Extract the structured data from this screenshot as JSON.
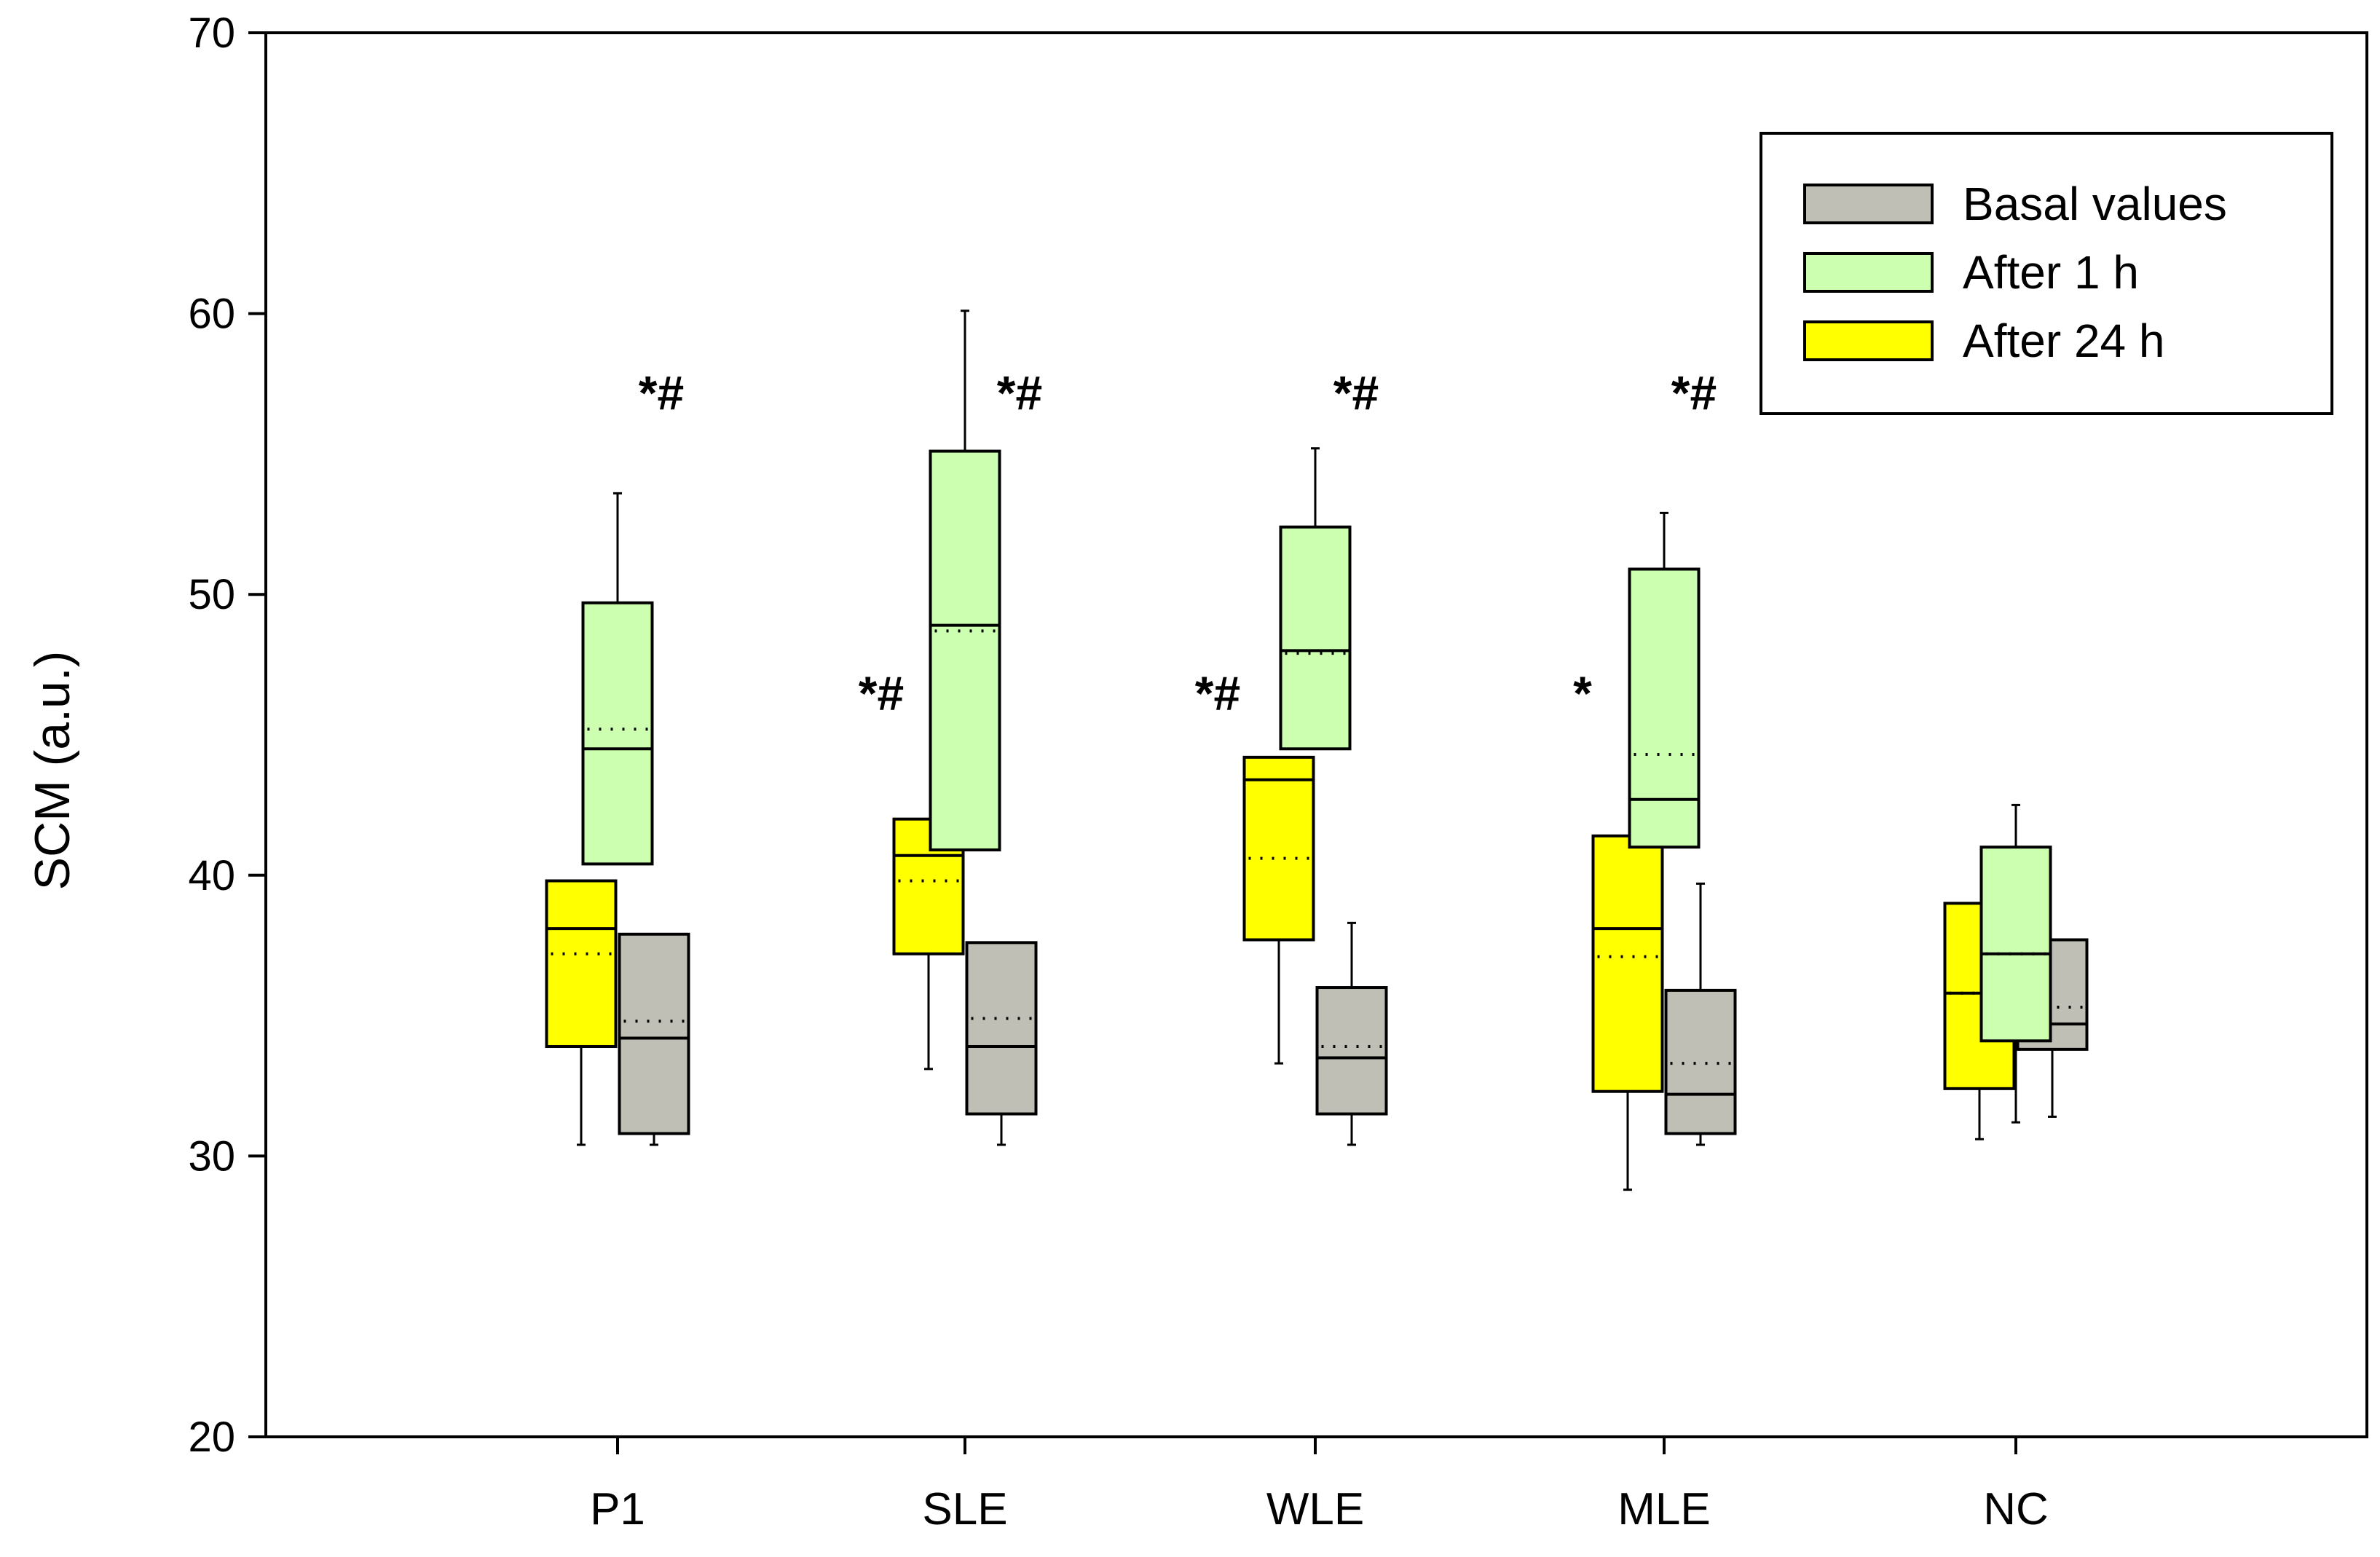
{
  "chart_data": {
    "type": "box",
    "ylabel": "SCM (a.u.)",
    "ylim": [
      20,
      70
    ],
    "yticks": [
      20,
      30,
      40,
      50,
      60,
      70
    ],
    "categories": [
      "P1",
      "SLE",
      "WLE",
      "MLE",
      "NC"
    ],
    "legend_position": "top-right",
    "series": [
      {
        "name": "Basal values",
        "color": "#c0bfb5",
        "boxes": [
          {
            "min": 30.4,
            "q1": 30.8,
            "median": 34.2,
            "mean": 34.8,
            "q3": 37.9,
            "max": 37.9
          },
          {
            "min": 30.4,
            "q1": 31.5,
            "median": 33.9,
            "mean": 34.9,
            "q3": 37.6,
            "max": 37.6
          },
          {
            "min": 30.4,
            "q1": 31.5,
            "median": 33.5,
            "mean": 33.9,
            "q3": 36.0,
            "max": 38.3
          },
          {
            "min": 30.4,
            "q1": 30.8,
            "median": 32.2,
            "mean": 33.3,
            "q3": 35.9,
            "max": 39.7
          },
          {
            "min": 31.4,
            "q1": 33.8,
            "median": 34.7,
            "mean": 35.3,
            "q3": 37.7,
            "max": 37.7
          }
        ]
      },
      {
        "name": "After 1 h",
        "color": "#ccffb0",
        "boxes": [
          {
            "min": 40.4,
            "q1": 40.4,
            "median": 44.5,
            "mean": 45.2,
            "q3": 49.7,
            "max": 53.6
          },
          {
            "min": 40.9,
            "q1": 40.9,
            "median": 48.9,
            "mean": 48.7,
            "q3": 55.1,
            "max": 60.1
          },
          {
            "min": 44.5,
            "q1": 44.5,
            "median": 48.0,
            "mean": 47.9,
            "q3": 52.4,
            "max": 55.2
          },
          {
            "min": 41.0,
            "q1": 41.0,
            "median": 42.7,
            "mean": 44.3,
            "q3": 50.9,
            "max": 52.9
          },
          {
            "min": 31.2,
            "q1": 34.1,
            "median": 37.2,
            "mean": 37.2,
            "q3": 41.0,
            "max": 42.5
          }
        ]
      },
      {
        "name": "After 24 h",
        "color": "#ffff00",
        "boxes": [
          {
            "min": 30.4,
            "q1": 33.9,
            "median": 38.1,
            "mean": 37.2,
            "q3": 39.8,
            "max": 39.8
          },
          {
            "min": 33.1,
            "q1": 37.2,
            "median": 40.7,
            "mean": 39.8,
            "q3": 42.0,
            "max": 42.0
          },
          {
            "min": 33.3,
            "q1": 37.7,
            "median": 43.4,
            "mean": 40.6,
            "q3": 44.2,
            "max": 44.2
          },
          {
            "min": 28.8,
            "q1": 32.3,
            "median": 38.1,
            "mean": 37.1,
            "q3": 41.4,
            "max": 41.4
          },
          {
            "min": 30.6,
            "q1": 32.4,
            "median": 35.8,
            "mean": 35.8,
            "q3": 39.0,
            "max": 39.0
          }
        ]
      }
    ],
    "annotations": [
      {
        "text": "*#",
        "category": "P1",
        "y": 57.2
      },
      {
        "text": "*#",
        "category": "SLE",
        "y": 57.2
      },
      {
        "text": "*#",
        "category": "WLE",
        "y": 57.2
      },
      {
        "text": "*#",
        "category": "MLE",
        "y": 57.2
      },
      {
        "text": "*#",
        "category": "SLE",
        "y": 46.5
      },
      {
        "text": "*#",
        "category": "WLE",
        "y": 46.5
      },
      {
        "text": "*",
        "category": "MLE",
        "y": 46.5
      }
    ]
  }
}
